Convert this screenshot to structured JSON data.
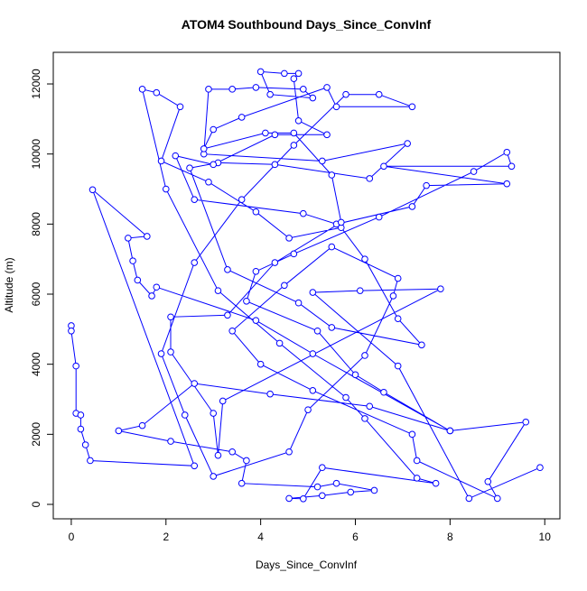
{
  "chart_data": {
    "type": "scatter",
    "connected": true,
    "title": "ATOM4 Southbound Days_Since_ConvInf",
    "xlabel": "Days_Since_ConvInf",
    "ylabel": "Altitude (m)",
    "color": "#0000ff",
    "xlim": [
      -0.38,
      10.32
    ],
    "ylim": [
      -412,
      12902
    ],
    "xticks": [
      0,
      2,
      4,
      6,
      8,
      10
    ],
    "yticks": [
      0,
      2000,
      4000,
      6000,
      8000,
      10000,
      12000
    ],
    "x": [
      0,
      0,
      0.1,
      0.1,
      0.2,
      0.2,
      0.3,
      0.4,
      2.6,
      0.45,
      1.6,
      1.2,
      1.3,
      1.4,
      1.7,
      1.8,
      3.9,
      5.1,
      8.0,
      6.3,
      4.2,
      2.6,
      1.5,
      1.0,
      2.1,
      3.4,
      3.7,
      3.6,
      5.2,
      5.6,
      6.4,
      5.9,
      5.3,
      4.6,
      4.9,
      5.3,
      7.7,
      7.3,
      6.2,
      5.8,
      4.4,
      3.1,
      2.0,
      1.5,
      1.8,
      2.3,
      1.9,
      2.9,
      3.9,
      4.6,
      5.7,
      6.2,
      6.9,
      7.4,
      5.5,
      4.8,
      3.3,
      2.5,
      3.1,
      4.3,
      6.3,
      7.1,
      5.3,
      2.8,
      2.9,
      3.4,
      3.9,
      4.9,
      5.1,
      4.2,
      4.0,
      4.5,
      4.8,
      4.7,
      4.8,
      5.4,
      4.3,
      3.0,
      2.2,
      2.6,
      4.9,
      5.6,
      7.2,
      7.5,
      9.2,
      6.6,
      9.3,
      9.2,
      8.5,
      6.5,
      4.7,
      3.9,
      3.7,
      5.2,
      6.0,
      6.6,
      8.0,
      9.6,
      8.8,
      9.0,
      7.3,
      7.2,
      5.1,
      4.0,
      3.4,
      4.5,
      5.5,
      6.9,
      6.8,
      6.2,
      5.0,
      4.6,
      3.0,
      2.4,
      1.9,
      2.6,
      3.6,
      4.7,
      5.8,
      6.5,
      7.2,
      5.6,
      5.4,
      3.6,
      3.0,
      2.8,
      4.1,
      4.7,
      5.5,
      5.7,
      4.3,
      3.3,
      2.1,
      2.1,
      3.0,
      3.1,
      3.2,
      7.8,
      6.1,
      5.1,
      6.9,
      8.4,
      9.9
    ],
    "values": [
      5100,
      4950,
      3950,
      2600,
      2550,
      2150,
      1700,
      1250,
      1100,
      8980,
      7650,
      7600,
      6950,
      6400,
      5950,
      6200,
      5250,
      4300,
      2100,
      2800,
      3150,
      3450,
      2250,
      2100,
      1800,
      1500,
      1250,
      600,
      500,
      600,
      400,
      350,
      250,
      170,
      160,
      1050,
      600,
      750,
      2450,
      3050,
      4600,
      6100,
      9000,
      11850,
      11750,
      11350,
      9800,
      9200,
      8350,
      7600,
      7900,
      7000,
      5300,
      4550,
      5050,
      5750,
      6700,
      9600,
      9750,
      9700,
      9300,
      10300,
      9800,
      10000,
      11850,
      11850,
      11900,
      11850,
      11600,
      11700,
      12350,
      12300,
      12300,
      12150,
      10950,
      10550,
      10550,
      9700,
      9950,
      8700,
      8300,
      8000,
      8500,
      9100,
      9150,
      9650,
      9650,
      10050,
      9500,
      8200,
      7150,
      6650,
      5800,
      4950,
      3700,
      3200,
      2100,
      2350,
      650,
      170,
      1250,
      2000,
      3250,
      4000,
      4950,
      6250,
      7350,
      6450,
      5950,
      4250,
      2700,
      1500,
      800,
      2550,
      4300,
      6900,
      8700,
      10250,
      11700,
      11700,
      11350,
      11350,
      11900,
      11050,
      10700,
      10150,
      10600,
      10600,
      9400,
      8050,
      6900,
      5400,
      5350,
      4350,
      2600,
      1400,
      2950,
      6150,
      6100,
      6050,
      3950,
      170,
      1050
    ]
  }
}
